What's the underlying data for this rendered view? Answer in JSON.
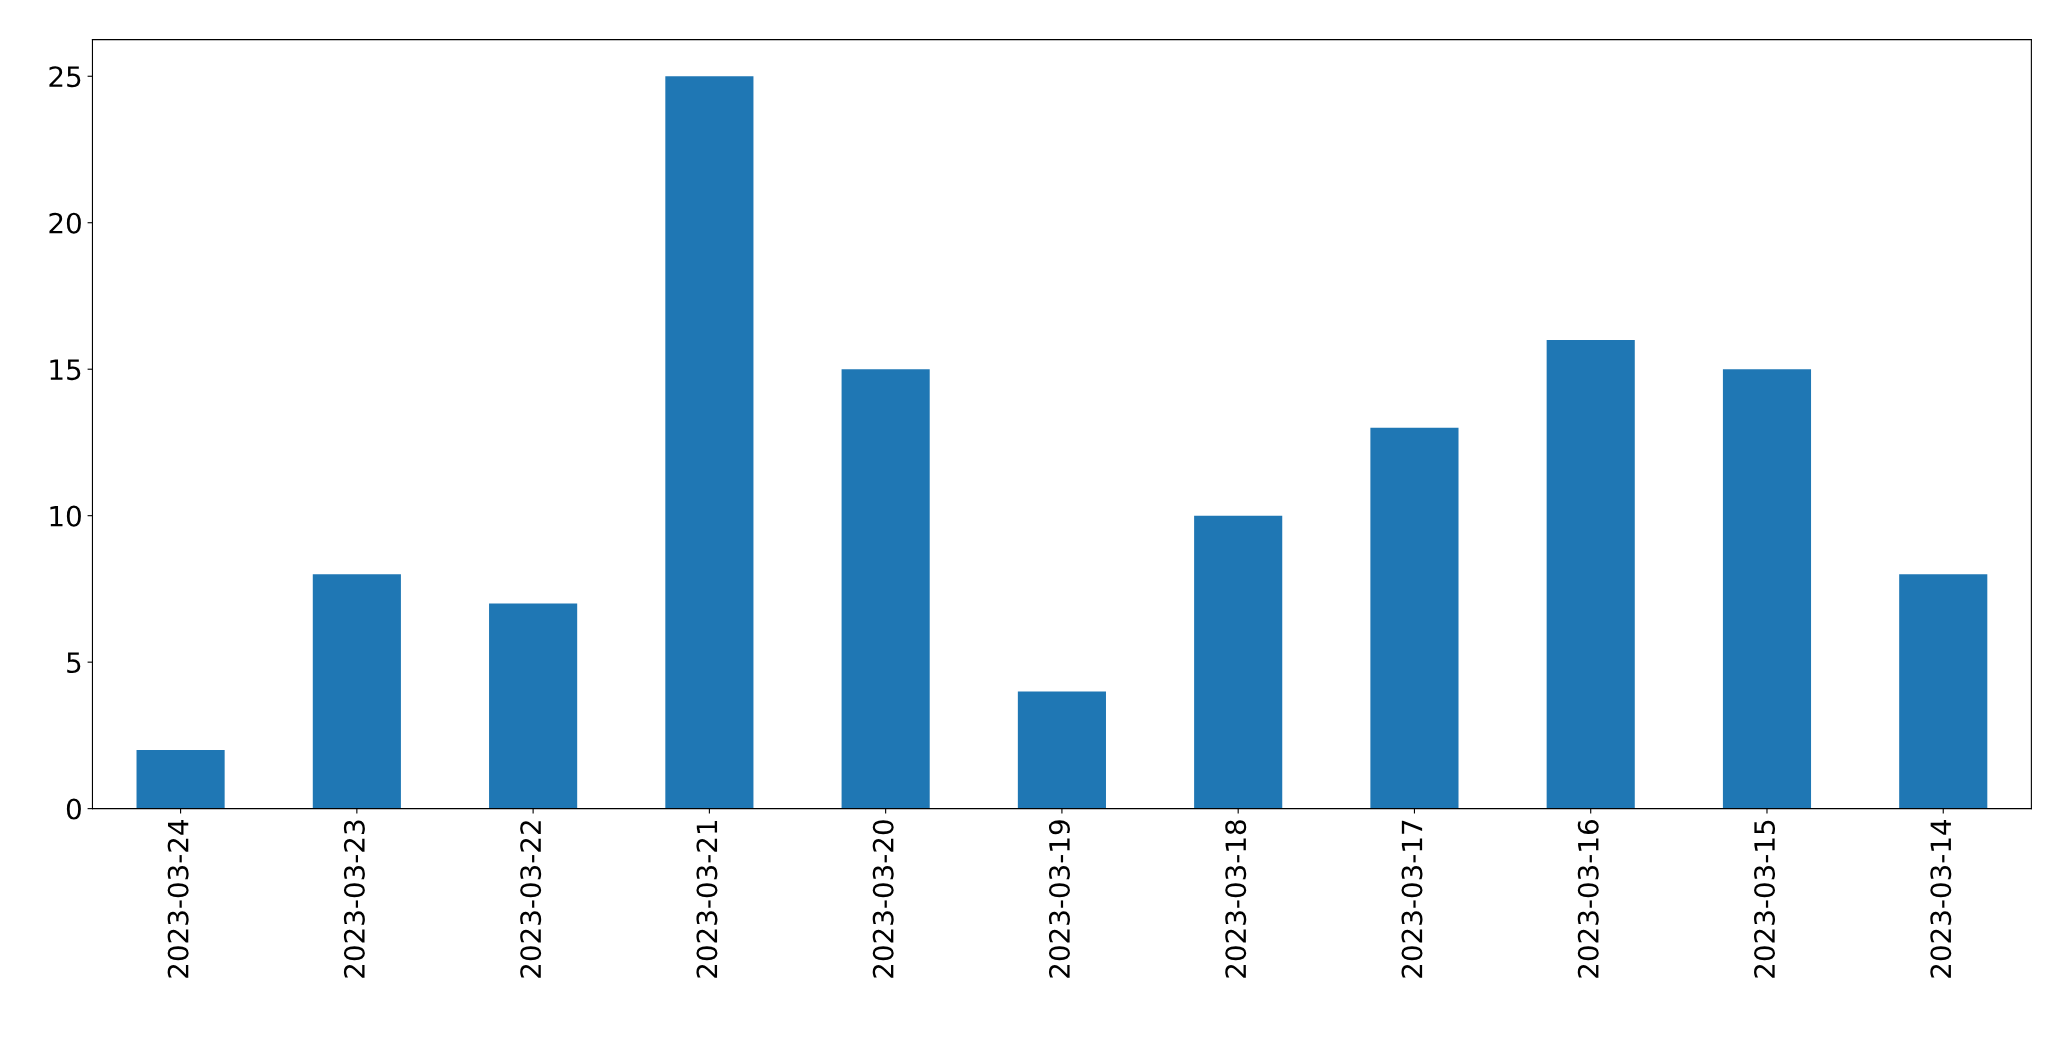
{
  "chart_data": {
    "type": "bar",
    "categories": [
      "2023-03-24",
      "2023-03-23",
      "2023-03-22",
      "2023-03-21",
      "2023-03-20",
      "2023-03-19",
      "2023-03-18",
      "2023-03-17",
      "2023-03-16",
      "2023-03-15",
      "2023-03-14"
    ],
    "values": [
      2,
      8,
      7,
      25,
      15,
      4,
      10,
      13,
      16,
      15,
      8
    ],
    "color": "#1f77b4",
    "ylim": [
      0,
      26.25
    ],
    "yticks": [
      0,
      5,
      10,
      15,
      20,
      25
    ],
    "grid": false,
    "legend": false
  }
}
